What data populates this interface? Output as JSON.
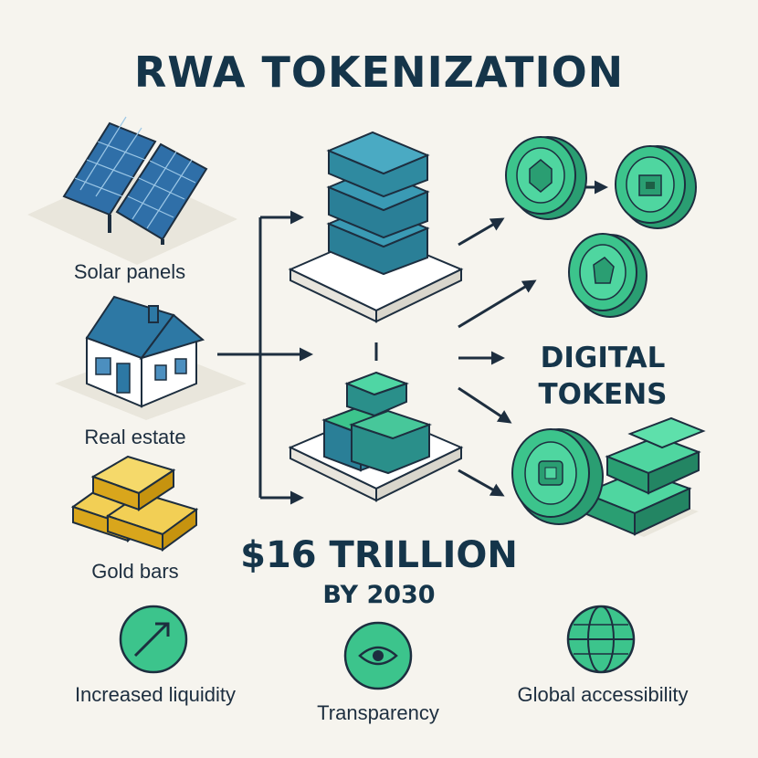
{
  "title": "RWA TOKENIZATION",
  "assets": {
    "solar": "Solar panels",
    "real_estate": "Real estate",
    "gold": "Gold bars"
  },
  "output_label_line1": "DIGITAL",
  "output_label_line2": "TOKENS",
  "stat": {
    "main": "$16 TRILLION",
    "sub": "BY 2030"
  },
  "benefits": {
    "liquidity": "Increased liquidity",
    "transparency": "Transparency",
    "global": "Global accessibility"
  },
  "colors": {
    "navy": "#15354a",
    "teal_block": "#2f8aa0",
    "green_token": "#3cc48c",
    "gold": "#e9b92b",
    "house_roof": "#2d78a4",
    "background": "#f6f4ee"
  }
}
